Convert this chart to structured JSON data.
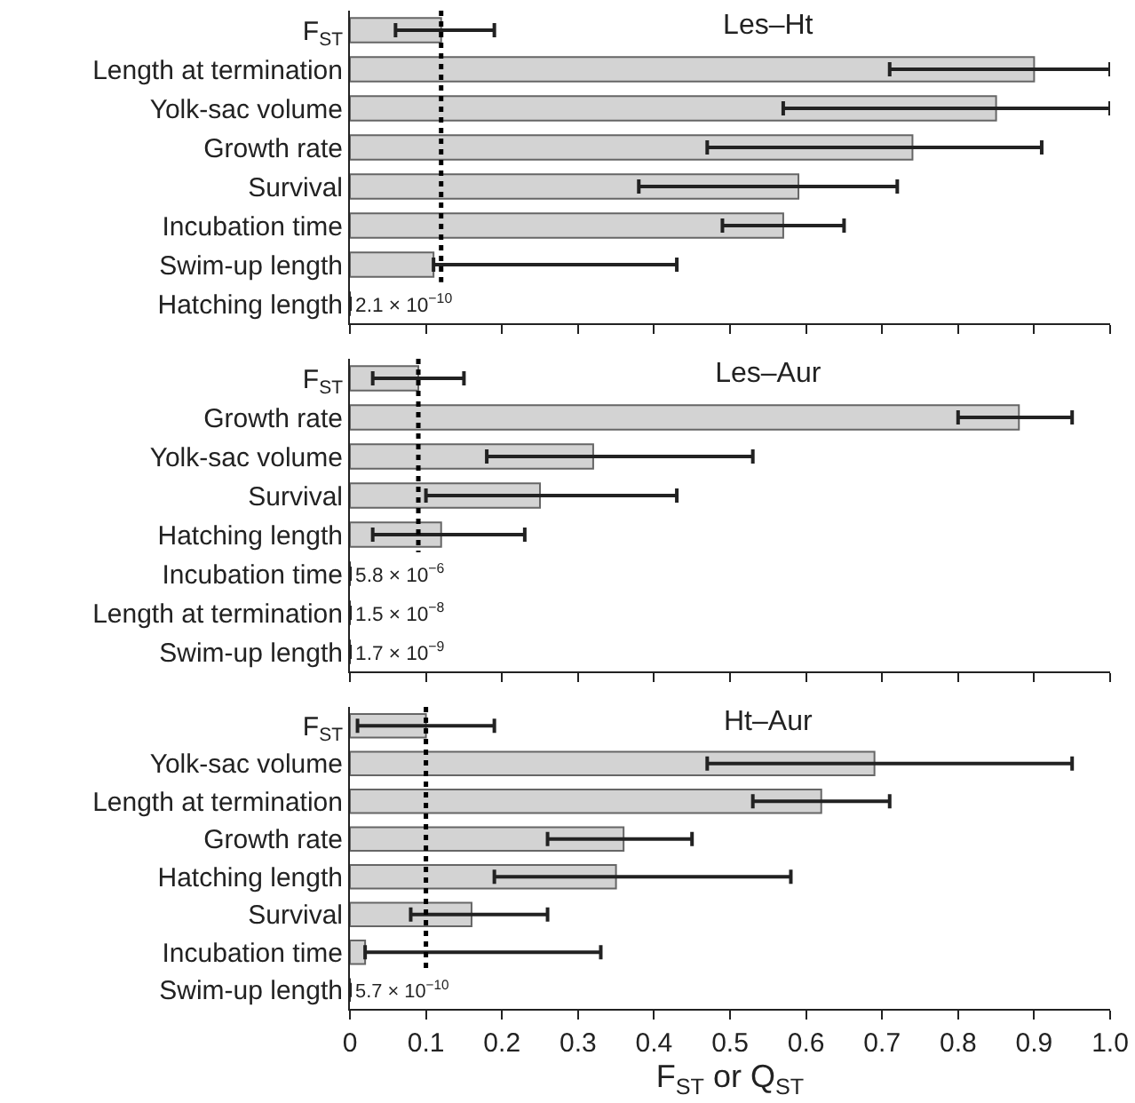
{
  "chart_data": [
    {
      "type": "bar",
      "orientation": "horizontal",
      "title": "Les–Ht",
      "tick_labels": "y",
      "grid": false,
      "categories": [
        "F$_{ST}$",
        "Length at termination",
        "Yolk-sac volume",
        "Growth rate",
        "Survival",
        "Incubation time",
        "Swim-up length",
        "Hatching length"
      ],
      "series": [
        {
          "color": "#d3d3d3",
          "values": [
            0.12,
            0.9,
            0.85,
            0.74,
            0.59,
            0.57,
            0.11,
            2.1e-10
          ],
          "colors": [
            "#d3d3d3",
            "#d3d3d3",
            "#d3d3d3",
            "#d3d3d3",
            "#d3d3d3",
            "#d3d3d3",
            "#d3d3d3",
            "#333333"
          ],
          "errors": [
            [
              0.06,
              0.19
            ],
            [
              0.71,
              1.0
            ],
            [
              0.57,
              1.0
            ],
            [
              0.47,
              0.91
            ],
            [
              0.38,
              0.72
            ],
            [
              0.49,
              0.65
            ],
            [
              0.11,
              0.43
            ],
            null
          ],
          "value_labels": [
            null,
            null,
            null,
            null,
            null,
            null,
            null,
            "2.1 × 10$^{−10}$"
          ]
        }
      ],
      "ref_lines": [
        {
          "axis": "x",
          "value": 0.12,
          "color": "#000000",
          "line_style": "dotted"
        }
      ],
      "xlim": [
        0,
        1
      ],
      "xticks": [
        0,
        0.1,
        0.2,
        0.3,
        0.4,
        0.5,
        0.6,
        0.7,
        0.8,
        0.9,
        1
      ]
    },
    {
      "type": "bar",
      "orientation": "horizontal",
      "title": "Les–Aur",
      "tick_labels": "y",
      "grid": false,
      "categories": [
        "F$_{ST}$",
        "Growth rate",
        "Yolk-sac volume",
        "Survival",
        "Hatching length",
        "Incubation time",
        "Length at termination",
        "Swim-up length"
      ],
      "series": [
        {
          "color": "#d3d3d3",
          "values": [
            0.09,
            0.88,
            0.32,
            0.25,
            0.12,
            5.8e-06,
            1.5e-08,
            1.7e-09
          ],
          "colors": [
            "#d3d3d3",
            "#d3d3d3",
            "#d3d3d3",
            "#d3d3d3",
            "#d3d3d3",
            "#333333",
            "#333333",
            "#333333"
          ],
          "errors": [
            [
              0.03,
              0.15
            ],
            [
              0.8,
              0.95
            ],
            [
              0.18,
              0.53
            ],
            [
              0.1,
              0.43
            ],
            [
              0.03,
              0.23
            ],
            null,
            null,
            null
          ],
          "value_labels": [
            null,
            null,
            null,
            null,
            null,
            "5.8 × 10$^{−6}$",
            "1.5 × 10$^{−8}$",
            "1.7 × 10$^{−9}$"
          ]
        }
      ],
      "ref_lines": [
        {
          "axis": "x",
          "value": 0.09,
          "color": "#000000",
          "line_style": "dotted"
        }
      ],
      "xlim": [
        0,
        1
      ],
      "xticks": [
        0,
        0.1,
        0.2,
        0.3,
        0.4,
        0.5,
        0.6,
        0.7,
        0.8,
        0.9,
        1
      ]
    },
    {
      "type": "bar",
      "orientation": "horizontal",
      "title": "Ht–Aur",
      "xlabel": "F$_{ST}$ or Q$_{ST}$",
      "grid": false,
      "categories": [
        "F$_{ST}$",
        "Yolk-sac volume",
        "Length at termination",
        "Growth rate",
        "Hatching length",
        "Survival",
        "Incubation time",
        "Swim-up length"
      ],
      "series": [
        {
          "color": "#d3d3d3",
          "values": [
            0.1,
            0.69,
            0.62,
            0.36,
            0.35,
            0.16,
            0.02,
            5.7e-10
          ],
          "colors": [
            "#d3d3d3",
            "#d3d3d3",
            "#d3d3d3",
            "#d3d3d3",
            "#d3d3d3",
            "#d3d3d3",
            "#d3d3d3",
            "#333333"
          ],
          "errors": [
            [
              0.01,
              0.19
            ],
            [
              0.47,
              0.95
            ],
            [
              0.53,
              0.71
            ],
            [
              0.26,
              0.45
            ],
            [
              0.19,
              0.58
            ],
            [
              0.08,
              0.26
            ],
            [
              0.02,
              0.33
            ],
            null
          ],
          "value_labels": [
            null,
            null,
            null,
            null,
            null,
            null,
            null,
            "5.7 × 10$^{−10}$"
          ]
        }
      ],
      "ref_lines": [
        {
          "axis": "x",
          "value": 0.1,
          "color": "#000000",
          "line_style": "dotted"
        }
      ],
      "xlim": [
        0,
        1
      ],
      "xticks": [
        0,
        0.1,
        0.2,
        0.3,
        0.4,
        0.5,
        0.6,
        0.7,
        0.8,
        0.9,
        {
          "value": 1,
          "label": "1.0"
        }
      ]
    }
  ]
}
